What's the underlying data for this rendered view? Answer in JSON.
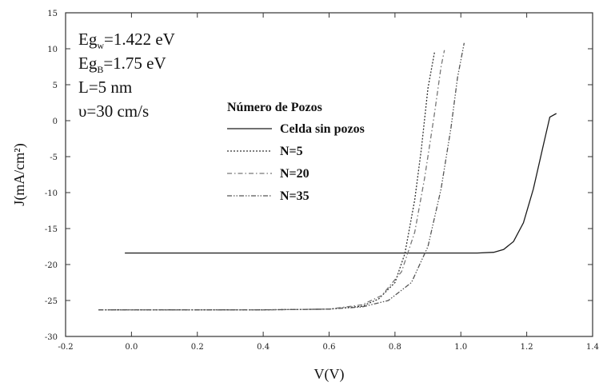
{
  "chart_data": {
    "type": "line",
    "xlabel": "V(V)",
    "ylabel": "J(mA/cm²)",
    "xlim": [
      -0.2,
      1.4
    ],
    "ylim": [
      -30,
      15
    ],
    "xticks": [
      -0.2,
      0.0,
      0.2,
      0.4,
      0.6,
      0.8,
      1.0,
      1.2,
      1.4
    ],
    "yticks": [
      -30,
      -25,
      -20,
      -15,
      -10,
      -5,
      0,
      5,
      10,
      15
    ],
    "xtick_labels": [
      "-0.2",
      "0.0",
      "0.2",
      "0.4",
      "0.6",
      "0.8",
      "1.0",
      "1.2",
      "1.4"
    ],
    "ytick_labels": [
      "-30",
      "-25",
      "-20",
      "-15",
      "-10",
      "-5",
      "0",
      "5",
      "10",
      "15"
    ],
    "grid": false,
    "legend_title": "Número de Pozos",
    "legend_position": "upper-center",
    "annotations": [
      {
        "main": "Eg",
        "sub": "w",
        "rest": "=1.422 eV"
      },
      {
        "main": "Eg",
        "sub": "B",
        "rest": "=1.75 eV"
      },
      {
        "main": "L=5 nm",
        "sub": "",
        "rest": ""
      },
      {
        "main": "υ=30 cm/s",
        "sub": "",
        "rest": ""
      }
    ],
    "series": [
      {
        "name": "Celda sin pozos",
        "style": "solid",
        "x": [
          -0.02,
          0.2,
          0.4,
          0.6,
          0.8,
          1.0,
          1.05,
          1.1,
          1.13,
          1.16,
          1.19,
          1.22,
          1.25,
          1.27,
          1.29
        ],
        "y": [
          -18.4,
          -18.4,
          -18.4,
          -18.4,
          -18.4,
          -18.4,
          -18.4,
          -18.3,
          -17.9,
          -16.8,
          -14.2,
          -9.5,
          -3.5,
          0.5,
          1.0
        ]
      },
      {
        "name": "N=5",
        "style": "dotted",
        "x": [
          -0.1,
          0.2,
          0.4,
          0.6,
          0.7,
          0.75,
          0.8,
          0.83,
          0.86,
          0.88,
          0.9,
          0.92
        ],
        "y": [
          -26.3,
          -26.3,
          -26.3,
          -26.2,
          -25.8,
          -24.8,
          -22.5,
          -18.5,
          -11.0,
          -4.0,
          4.5,
          9.5
        ]
      },
      {
        "name": "N=20",
        "style": "dash-dot",
        "x": [
          -0.1,
          0.2,
          0.4,
          0.6,
          0.7,
          0.76,
          0.82,
          0.86,
          0.89,
          0.92,
          0.94,
          0.95
        ],
        "y": [
          -26.3,
          -26.3,
          -26.3,
          -26.2,
          -25.6,
          -24.3,
          -21.0,
          -15.5,
          -8.0,
          1.0,
          7.5,
          9.8
        ]
      },
      {
        "name": "N=35",
        "style": "dash-dot-dot",
        "x": [
          -0.1,
          0.2,
          0.4,
          0.6,
          0.7,
          0.78,
          0.85,
          0.9,
          0.94,
          0.97,
          0.99,
          1.01
        ],
        "y": [
          -26.3,
          -26.3,
          -26.3,
          -26.2,
          -25.9,
          -25.0,
          -22.5,
          -17.5,
          -9.5,
          -1.0,
          6.0,
          10.8
        ]
      }
    ]
  }
}
